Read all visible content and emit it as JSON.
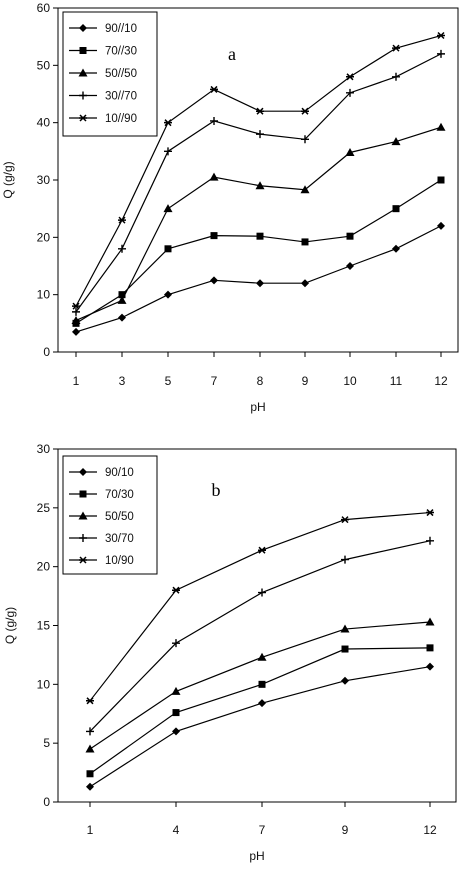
{
  "chart_data": [
    {
      "type": "line",
      "panel_label": "a",
      "xlabel": "pH",
      "ylabel": "Q (g/g)",
      "categories": [
        "1",
        "3",
        "5",
        "7",
        "8",
        "9",
        "10",
        "11",
        "12"
      ],
      "ylim": [
        0,
        60
      ],
      "yticks": [
        0,
        10,
        20,
        30,
        40,
        50,
        60
      ],
      "grid": false,
      "legend_position": "top-left",
      "series": [
        {
          "name": "90//10",
          "marker": "diamond",
          "values": [
            3.5,
            6,
            10,
            12.5,
            12,
            12,
            15,
            18,
            22
          ]
        },
        {
          "name": "70//30",
          "marker": "square",
          "values": [
            5,
            10,
            18,
            20.3,
            20.2,
            19.2,
            20.2,
            25,
            30
          ]
        },
        {
          "name": "50//50",
          "marker": "triangle",
          "values": [
            5.5,
            9,
            25,
            30.5,
            29,
            28.3,
            34.8,
            36.7,
            39.2
          ]
        },
        {
          "name": "30//70",
          "marker": "plus",
          "values": [
            7,
            18,
            35,
            40.3,
            38,
            37.1,
            45.2,
            48,
            52
          ]
        },
        {
          "name": "10//90",
          "marker": "star",
          "values": [
            8,
            23,
            40,
            45.8,
            42,
            42,
            48,
            53,
            55.2
          ]
        }
      ]
    },
    {
      "type": "line",
      "panel_label": "b",
      "xlabel": "pH",
      "ylabel": "Q (g/g)",
      "categories": [
        "1",
        "4",
        "7",
        "9",
        "12"
      ],
      "ylim": [
        0,
        30
      ],
      "yticks": [
        0,
        5,
        10,
        15,
        20,
        25,
        30
      ],
      "grid": false,
      "legend_position": "top-left",
      "series": [
        {
          "name": "90/10",
          "marker": "diamond",
          "values": [
            1.3,
            6,
            8.4,
            10.3,
            11.5
          ]
        },
        {
          "name": "70/30",
          "marker": "square",
          "values": [
            2.4,
            7.6,
            10,
            13,
            13.1
          ]
        },
        {
          "name": "50/50",
          "marker": "triangle",
          "values": [
            4.5,
            9.4,
            12.3,
            14.7,
            15.3
          ]
        },
        {
          "name": "30/70",
          "marker": "plus",
          "values": [
            6,
            13.5,
            17.8,
            20.6,
            22.2
          ]
        },
        {
          "name": "10/90",
          "marker": "star",
          "values": [
            8.6,
            18,
            21.4,
            24,
            24.6
          ]
        }
      ]
    }
  ]
}
